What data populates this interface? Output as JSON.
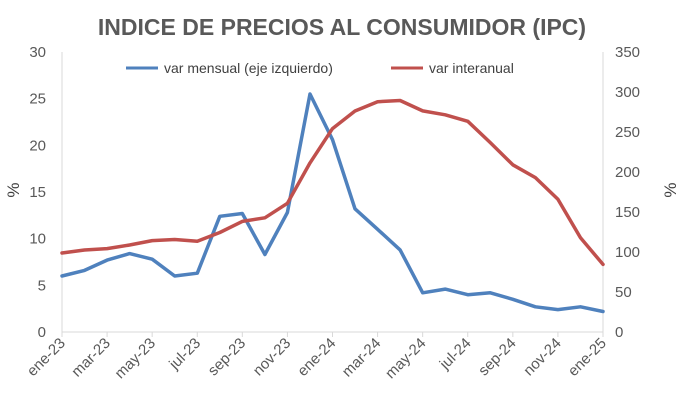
{
  "chart_data": {
    "type": "line",
    "title": "INDICE DE PRECIOS AL CONSUMIDOR (IPC)",
    "ylabel_left": "%",
    "ylabel_right": "%",
    "ylim_left": [
      0,
      30
    ],
    "ylim_right": [
      0,
      350
    ],
    "yticks_left": [
      "0",
      "5",
      "10",
      "15",
      "20",
      "25",
      "30"
    ],
    "yticks_right": [
      "0",
      "50",
      "100",
      "150",
      "200",
      "250",
      "300",
      "350"
    ],
    "x_tick_labels": [
      "ene-23",
      "mar-23",
      "may-23",
      "jul-23",
      "sep-23",
      "nov-23",
      "ene-24",
      "mar-24",
      "may-24",
      "jul-24",
      "sep-24",
      "nov-24",
      "ene-25"
    ],
    "categories": [
      "ene-23",
      "feb-23",
      "mar-23",
      "abr-23",
      "may-23",
      "jun-23",
      "jul-23",
      "ago-23",
      "sep-23",
      "oct-23",
      "nov-23",
      "dic-23",
      "ene-24",
      "feb-24",
      "mar-24",
      "abr-24",
      "may-24",
      "jun-24",
      "jul-24",
      "ago-24",
      "sep-24",
      "oct-24",
      "nov-24",
      "dic-24",
      "ene-25"
    ],
    "legend_position": "top",
    "grid": false,
    "series": [
      {
        "name": "var mensual (eje izquierdo)",
        "axis": "left",
        "color": "#4f81bd",
        "values": [
          6.0,
          6.6,
          7.7,
          8.4,
          7.8,
          6.0,
          6.3,
          12.4,
          12.7,
          8.3,
          12.8,
          25.5,
          20.6,
          13.2,
          11.0,
          8.8,
          4.2,
          4.6,
          4.0,
          4.2,
          3.5,
          2.7,
          2.4,
          2.7,
          2.2
        ]
      },
      {
        "name": "var interanual",
        "axis": "right",
        "color": "#c0504d",
        "values": [
          98.8,
          102.5,
          104.3,
          108.8,
          114.2,
          115.6,
          113.4,
          124.4,
          138.3,
          142.7,
          160.9,
          211.4,
          254.2,
          276.2,
          287.9,
          289.4,
          276.4,
          271.5,
          263.4,
          236.7,
          209.0,
          193.0,
          166.0,
          117.8,
          84.5
        ]
      }
    ]
  }
}
